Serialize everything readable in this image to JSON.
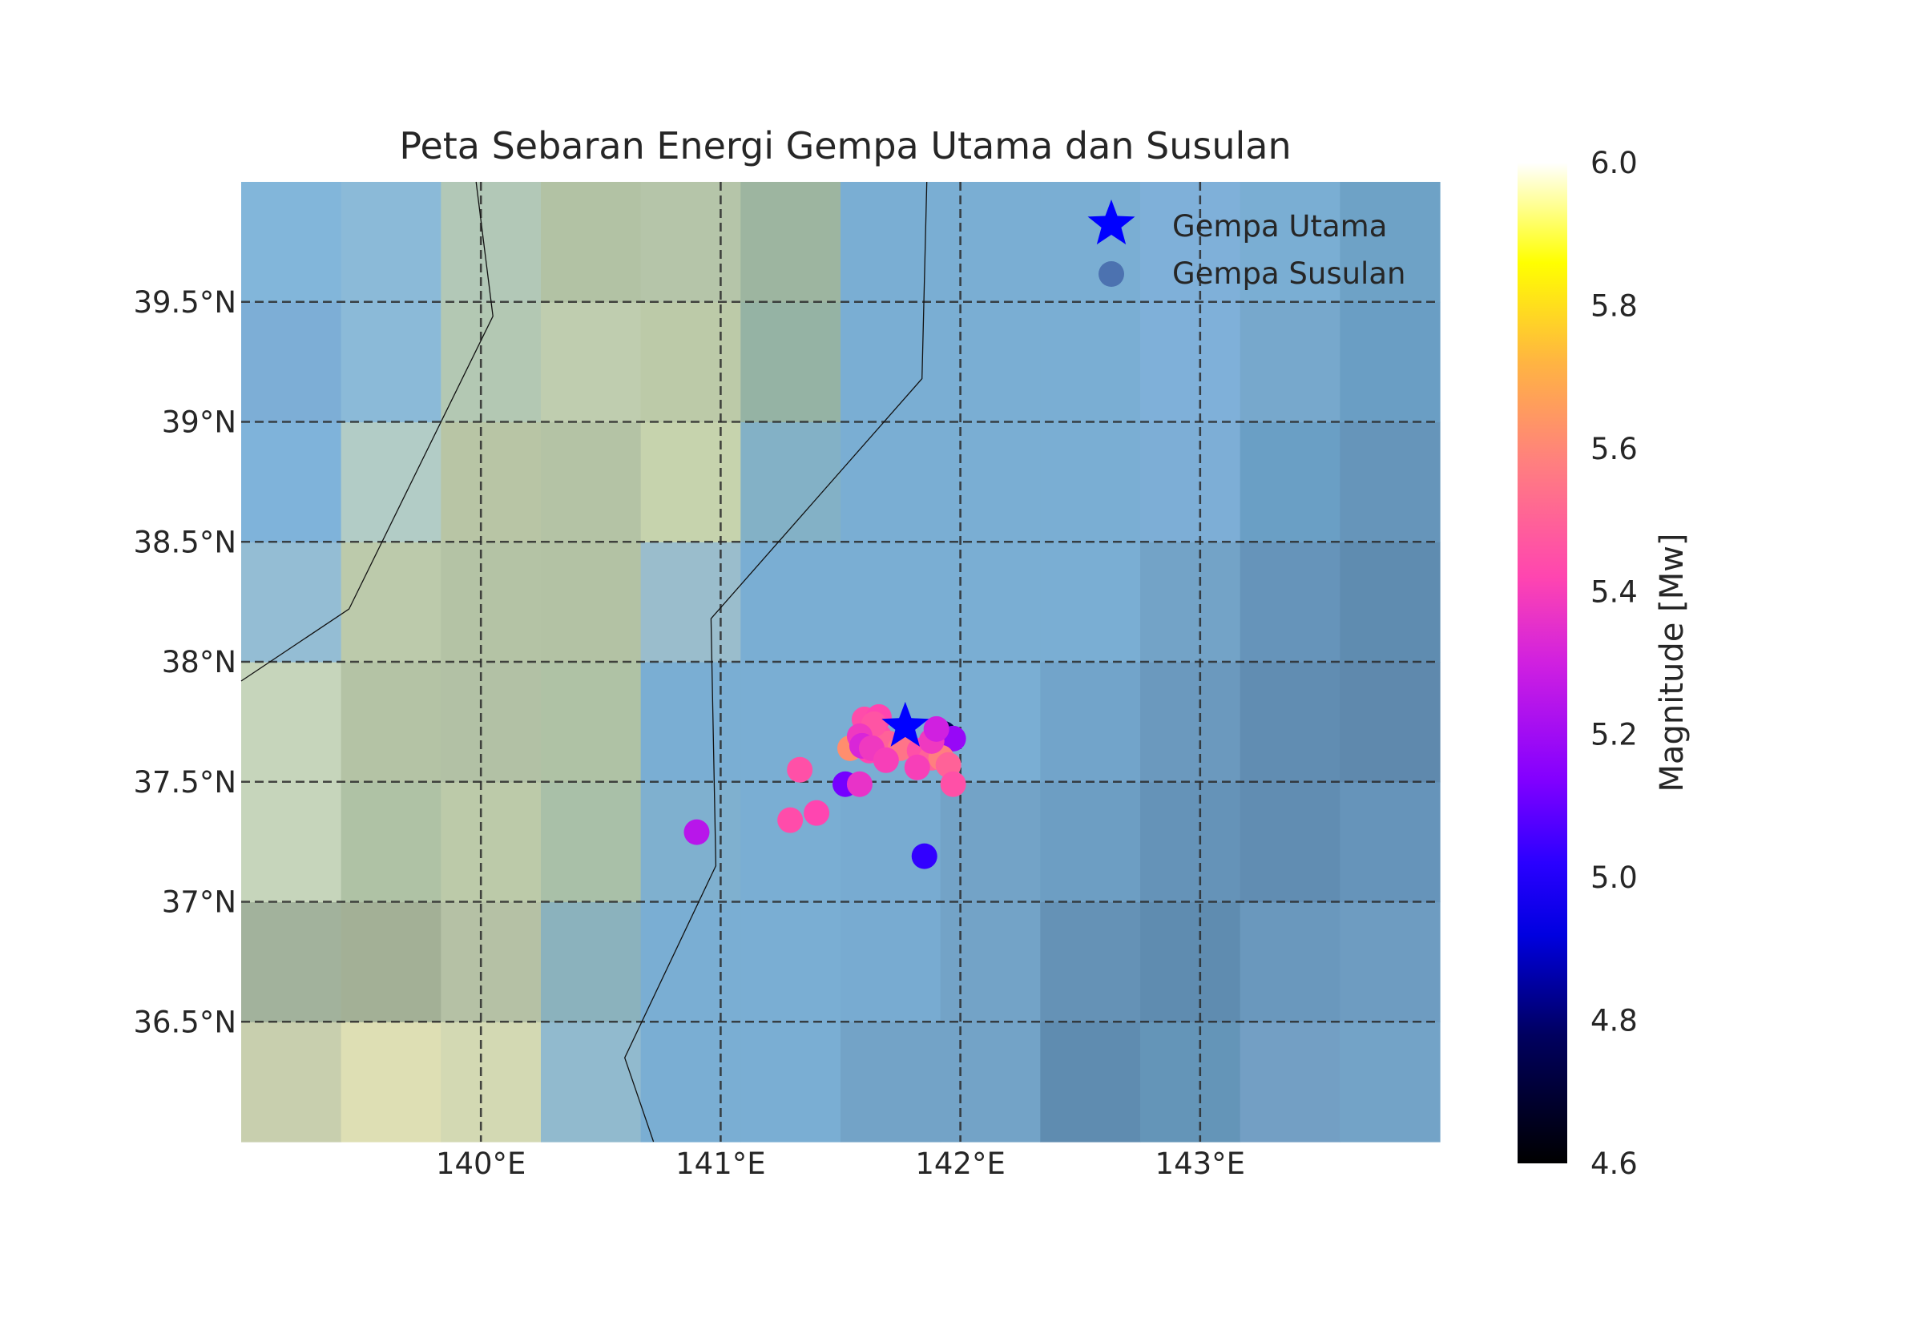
{
  "title": "Peta Sebaran Energi Gempa Utama dan Susulan",
  "map": {
    "lon_range": [
      139.0,
      144.0
    ],
    "lat_range": [
      36.0,
      40.0
    ],
    "grid_style": "dashed",
    "background": "gridded terrain/bathymetry cells, 0.5° × 0.5°",
    "x_ticks": [
      "140°E",
      "141°E",
      "142°E",
      "143°E"
    ],
    "x_tick_values": [
      140,
      141,
      142,
      143
    ],
    "y_ticks": [
      "39.5°N",
      "39°N",
      "38.5°N",
      "38°N",
      "37.5°N",
      "37°N",
      "36.5°N"
    ],
    "y_tick_values": [
      39.5,
      39.0,
      38.5,
      38.0,
      37.5,
      37.0,
      36.5
    ],
    "cell_colors": [
      [
        "#c8cfae",
        "#dedfb4",
        "#d3d9b3",
        "#91bace",
        "#7aaed3",
        "#7aaed3",
        "#73a3c7",
        "#73a3c7",
        "#5f8cb0",
        "#6495b8",
        "#739fc4",
        "#73a3c7"
      ],
      [
        "#a2b29c",
        "#a3b096",
        "#b5c1a5",
        "#8bb2bd",
        "#7aaed3",
        "#7aaed3",
        "#78abd1",
        "#73a3c7",
        "#6592b6",
        "#5f8cb0",
        "#6a98bd",
        "#6e9cc1"
      ],
      [
        "#c6d5bb",
        "#afc2a5",
        "#bccaa9",
        "#a9c0a8",
        "#7fb0cf",
        "#7aaed3",
        "#78abd1",
        "#73a3c7",
        "#6d9ec3",
        "#6593b8",
        "#618db2",
        "#6694ba"
      ],
      [
        "#c6d5bb",
        "#b4c3a5",
        "#b2c1a5",
        "#afc2a5",
        "#7aaed3",
        "#7aaed3",
        "#7aaed3",
        "#7aaed3",
        "#72a4ca",
        "#6b99be",
        "#618db2",
        "#5f89ad"
      ],
      [
        "#94bdd4",
        "#bccaab",
        "#b4c3a5",
        "#b3c2a4",
        "#9abdcc",
        "#7aaed3",
        "#7aaed3",
        "#7aaed3",
        "#7aaed3",
        "#73a3c7",
        "#6694ba",
        "#5f8cb0"
      ],
      [
        "#7fb3da",
        "#b2ccc6",
        "#b8c5a5",
        "#b4c3a5",
        "#c6d3ad",
        "#83b1c6",
        "#7aaed3",
        "#7aaed3",
        "#7aaed3",
        "#7daed6",
        "#6a9fc5",
        "#6695ba"
      ],
      [
        "#7daed6",
        "#8bbad8",
        "#b3c8b3",
        "#bfcdaf",
        "#bccaa8",
        "#95b3a4",
        "#7aaed3",
        "#7aaed3",
        "#7aaed3",
        "#7fb0d9",
        "#77a8cc",
        "#6a9ec4"
      ],
      [
        "#82b6da",
        "#8bbad8",
        "#b2c8b7",
        "#b2c2a4",
        "#b5c5a9",
        "#9db5a0",
        "#7aaed3",
        "#7aaed3",
        "#7aaed3",
        "#7fb0d9",
        "#7aaed3",
        "#6ea2c6"
      ]
    ],
    "coastlines": [
      [
        [
          139.98,
          40.0
        ],
        [
          140.05,
          39.44
        ],
        [
          139.45,
          38.22
        ],
        [
          139.0,
          37.92
        ]
      ],
      [
        [
          141.86,
          40.0
        ],
        [
          141.84,
          39.18
        ],
        [
          140.96,
          38.18
        ],
        [
          140.98,
          37.15
        ],
        [
          140.6,
          36.35
        ],
        [
          140.72,
          36.0
        ]
      ]
    ]
  },
  "legend": {
    "mainshock_label": "Gempa Utama",
    "aftershock_label": "Gempa Susulan",
    "mainshock_color": "#0000ff",
    "aftershock_color": "#4c72b0"
  },
  "colorbar": {
    "label": "Magnitude [Mw]",
    "colormap": "gnuplot2",
    "vmin": 4.6,
    "vmax": 6.0,
    "ticks": [
      "6.0",
      "5.8",
      "5.6",
      "5.4",
      "5.2",
      "5.0",
      "4.8",
      "4.6"
    ],
    "tick_values": [
      6.0,
      5.8,
      5.6,
      5.4,
      5.2,
      5.0,
      4.8,
      4.6
    ],
    "stops": [
      [
        4.6,
        "#000000"
      ],
      [
        4.78,
        "#000060"
      ],
      [
        4.92,
        "#0000e0"
      ],
      [
        5.02,
        "#2a00ff"
      ],
      [
        5.14,
        "#8400ff"
      ],
      [
        5.3,
        "#d020e0"
      ],
      [
        5.42,
        "#ff45b0"
      ],
      [
        5.58,
        "#ff7f7f"
      ],
      [
        5.72,
        "#ffb442"
      ],
      [
        5.86,
        "#ffff00"
      ],
      [
        6.0,
        "#ffffff"
      ]
    ]
  },
  "mainshock": {
    "lon": 141.77,
    "lat": 37.73
  },
  "aftershocks": [
    {
      "lon": 141.9,
      "lat": 37.7,
      "mag": 4.62
    },
    {
      "lon": 141.93,
      "lat": 37.7,
      "mag": 4.75
    },
    {
      "lon": 141.97,
      "lat": 37.68,
      "mag": 5.18
    },
    {
      "lon": 141.54,
      "lat": 37.64,
      "mag": 5.62
    },
    {
      "lon": 141.6,
      "lat": 37.68,
      "mag": 4.95
    },
    {
      "lon": 141.62,
      "lat": 37.63,
      "mag": 5.42
    },
    {
      "lon": 141.66,
      "lat": 37.69,
      "mag": 5.44
    },
    {
      "lon": 141.7,
      "lat": 37.66,
      "mag": 5.5
    },
    {
      "lon": 141.75,
      "lat": 37.64,
      "mag": 5.55
    },
    {
      "lon": 141.83,
      "lat": 37.63,
      "mag": 5.45
    },
    {
      "lon": 141.88,
      "lat": 37.6,
      "mag": 5.5
    },
    {
      "lon": 141.92,
      "lat": 37.6,
      "mag": 5.58
    },
    {
      "lon": 141.95,
      "lat": 37.57,
      "mag": 5.5
    },
    {
      "lon": 141.6,
      "lat": 37.76,
      "mag": 5.44
    },
    {
      "lon": 141.66,
      "lat": 37.77,
      "mag": 5.42
    },
    {
      "lon": 141.64,
      "lat": 37.74,
      "mag": 5.46
    },
    {
      "lon": 141.58,
      "lat": 37.69,
      "mag": 5.38
    },
    {
      "lon": 141.59,
      "lat": 37.65,
      "mag": 5.32
    },
    {
      "lon": 141.63,
      "lat": 37.64,
      "mag": 5.38
    },
    {
      "lon": 141.69,
      "lat": 37.59,
      "mag": 5.4
    },
    {
      "lon": 141.82,
      "lat": 37.56,
      "mag": 5.4
    },
    {
      "lon": 141.88,
      "lat": 37.67,
      "mag": 5.38
    },
    {
      "lon": 141.9,
      "lat": 37.72,
      "mag": 5.3
    },
    {
      "lon": 141.52,
      "lat": 37.49,
      "mag": 5.12
    },
    {
      "lon": 141.58,
      "lat": 37.49,
      "mag": 5.36
    },
    {
      "lon": 141.97,
      "lat": 37.49,
      "mag": 5.45
    },
    {
      "lon": 141.33,
      "lat": 37.55,
      "mag": 5.45
    },
    {
      "lon": 141.29,
      "lat": 37.34,
      "mag": 5.44
    },
    {
      "lon": 141.4,
      "lat": 37.37,
      "mag": 5.42
    },
    {
      "lon": 140.9,
      "lat": 37.29,
      "mag": 5.25
    },
    {
      "lon": 141.85,
      "lat": 37.19,
      "mag": 5.03
    }
  ]
}
